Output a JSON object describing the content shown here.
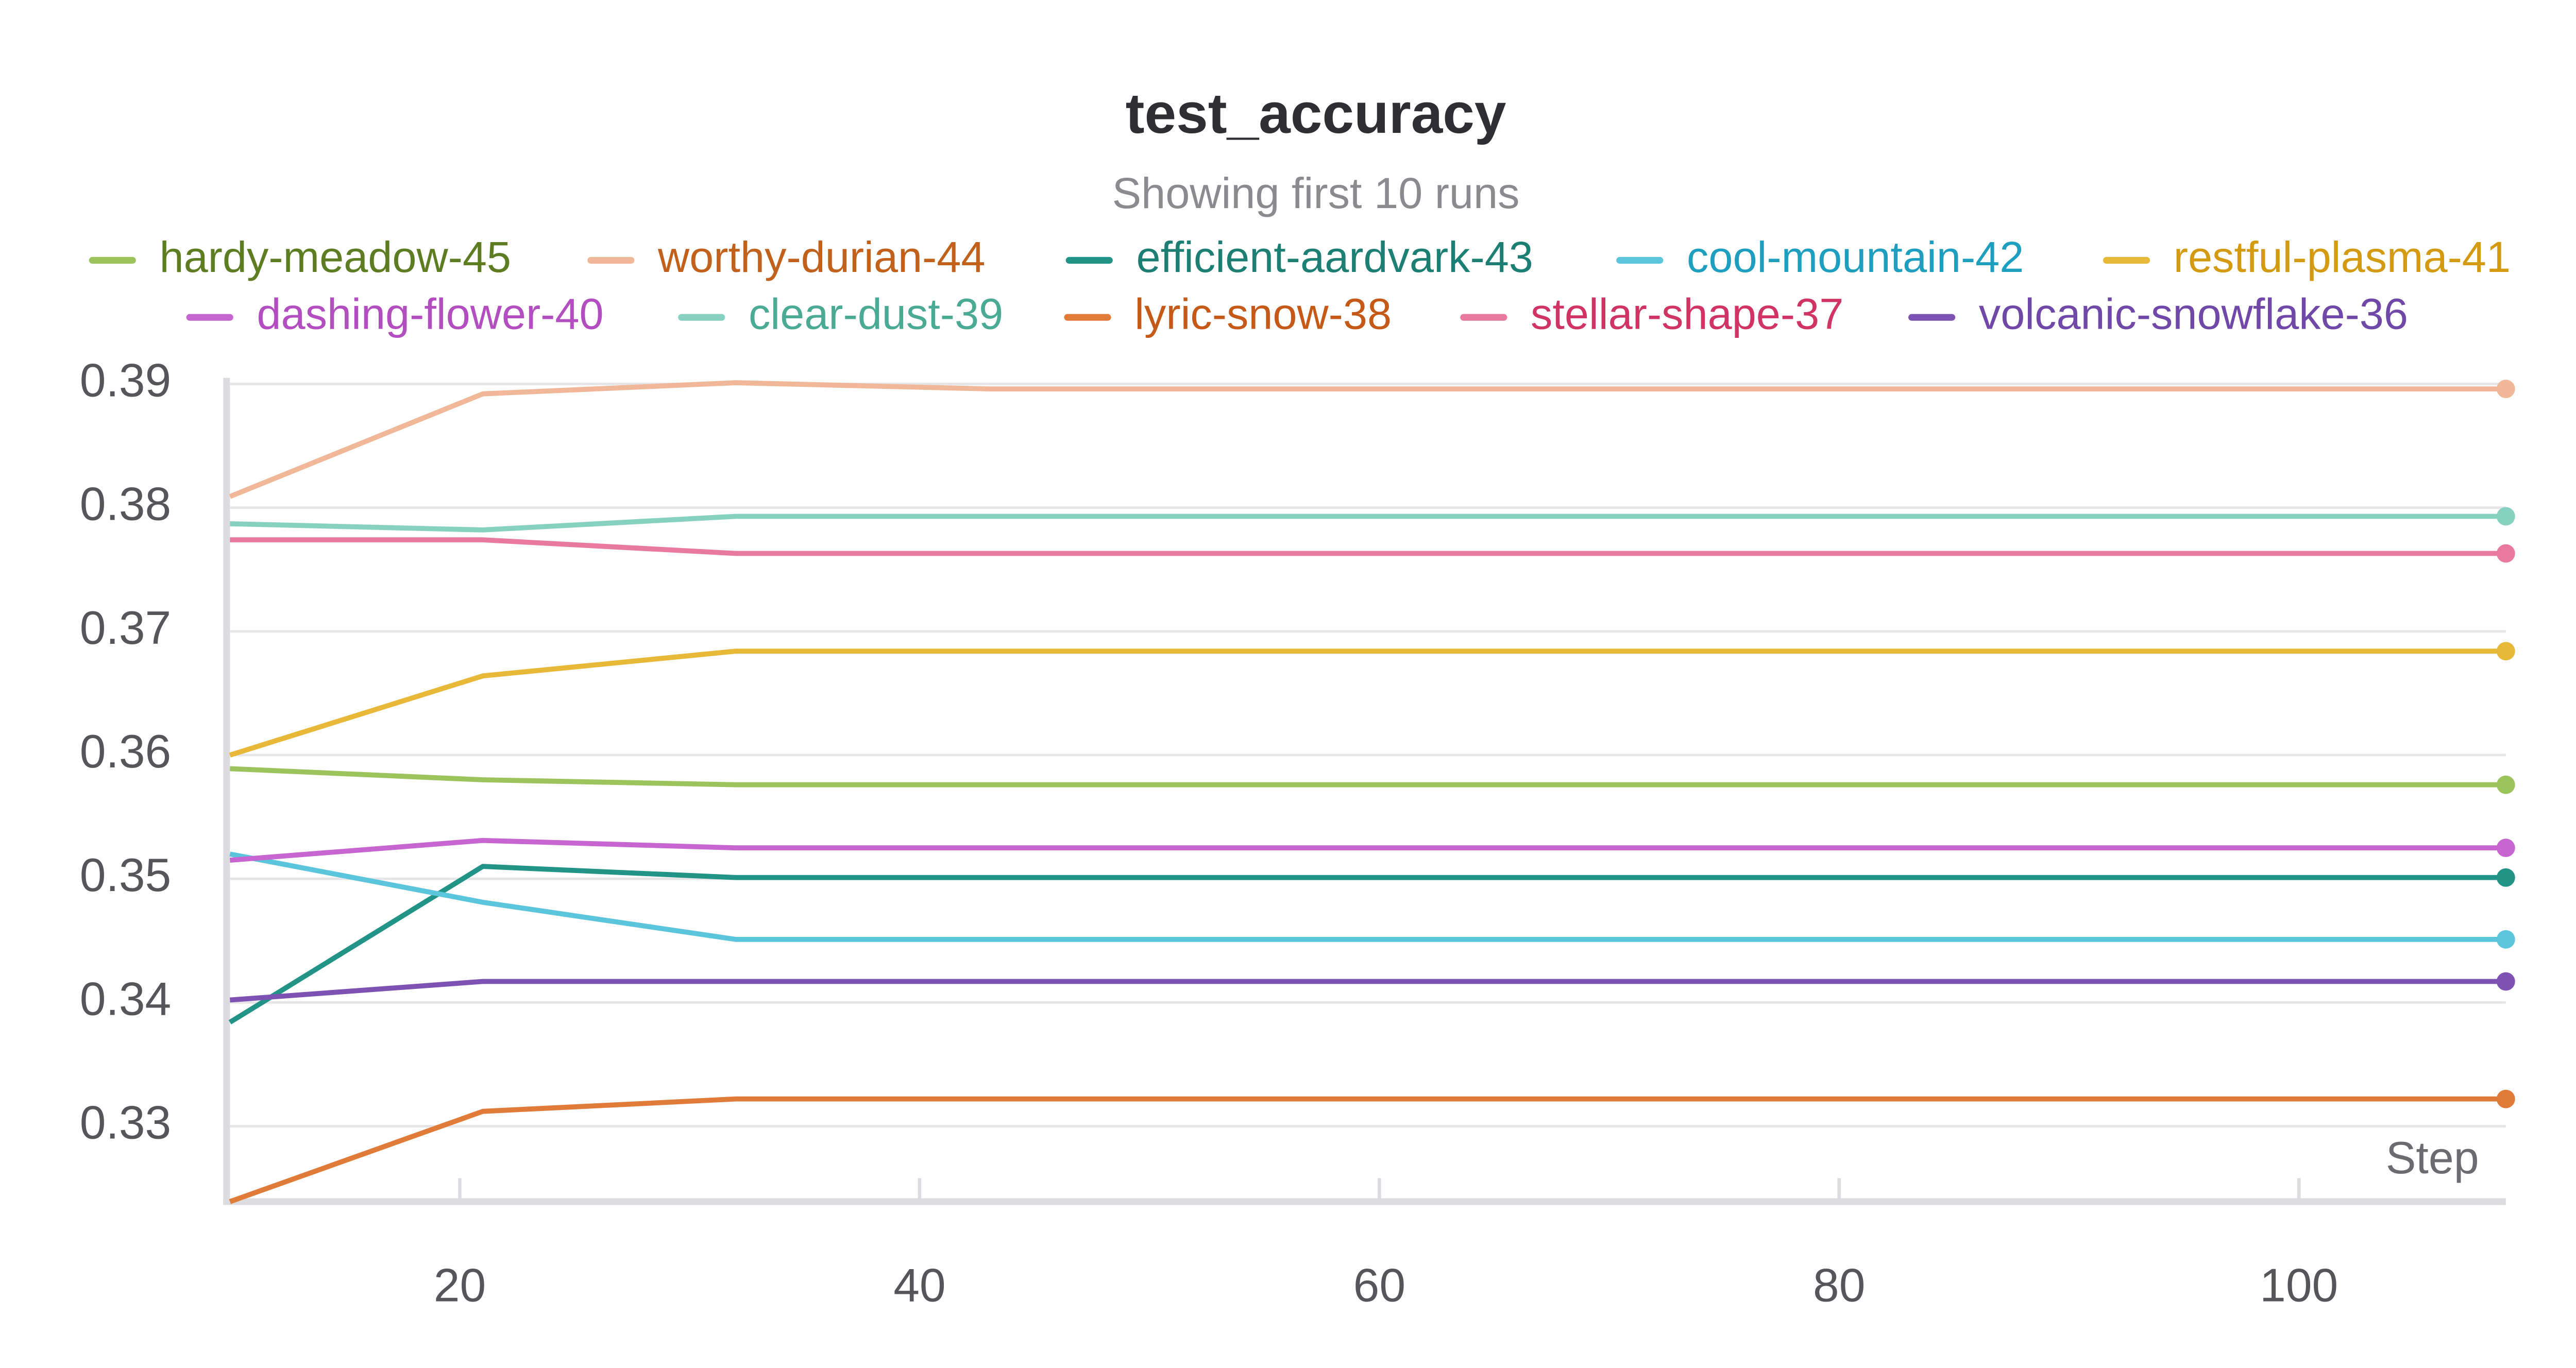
{
  "chart_data": {
    "type": "line",
    "title": "test_accuracy",
    "subtitle": "Showing first 10 runs",
    "x_label": "Step",
    "x": [
      10,
      21,
      32,
      43,
      54,
      65,
      76,
      87,
      98,
      109
    ],
    "xlim": [
      10,
      109
    ],
    "xticks": [
      20,
      40,
      60,
      80,
      100
    ],
    "ylim": [
      0.3239,
      0.3905
    ],
    "yticks": [
      0.33,
      0.34,
      0.35,
      0.36,
      0.37,
      0.38,
      0.39
    ],
    "grid": true,
    "series": [
      {
        "name": "hardy-meadow-45",
        "color": "#9cc45c",
        "text_color": "#5e7d22",
        "values": [
          0.3589,
          0.358,
          0.3576,
          0.3576,
          0.3576,
          0.3576,
          0.3576,
          0.3576,
          0.3576,
          0.3576
        ]
      },
      {
        "name": "worthy-durian-44",
        "color": "#f0b898",
        "text_color": "#c2611b",
        "values": [
          0.3809,
          0.3892,
          0.3901,
          0.3896,
          0.3896,
          0.3896,
          0.3896,
          0.3896,
          0.3896,
          0.3896
        ]
      },
      {
        "name": "efficient-aardvark-43",
        "color": "#229487",
        "text_color": "#1d7f73",
        "values": [
          0.3384,
          0.351,
          0.3501,
          0.3501,
          0.3501,
          0.3501,
          0.3501,
          0.3501,
          0.3501,
          0.3501
        ]
      },
      {
        "name": "cool-mountain-42",
        "color": "#5bc5db",
        "text_color": "#1f9fbf",
        "values": [
          0.352,
          0.3481,
          0.3451,
          0.3451,
          0.3451,
          0.3451,
          0.3451,
          0.3451,
          0.3451,
          0.3451
        ]
      },
      {
        "name": "restful-plasma-41",
        "color": "#e8b838",
        "text_color": "#d39a12",
        "values": [
          0.36,
          0.3664,
          0.3684,
          0.3684,
          0.3684,
          0.3684,
          0.3684,
          0.3684,
          0.3684,
          0.3684
        ]
      },
      {
        "name": "dashing-flower-40",
        "color": "#c765d1",
        "text_color": "#b24ec0",
        "values": [
          0.3515,
          0.3531,
          0.3525,
          0.3525,
          0.3525,
          0.3525,
          0.3525,
          0.3525,
          0.3525,
          0.3525
        ]
      },
      {
        "name": "clear-dust-39",
        "color": "#87d1c0",
        "text_color": "#4aaa93",
        "values": [
          0.3787,
          0.3782,
          0.3793,
          0.3793,
          0.3793,
          0.3793,
          0.3793,
          0.3793,
          0.3793,
          0.3793
        ]
      },
      {
        "name": "lyric-snow-38",
        "color": "#e07b39",
        "text_color": "#c55a18",
        "values": [
          0.3239,
          0.3312,
          0.3322,
          0.3322,
          0.3322,
          0.3322,
          0.3322,
          0.3322,
          0.3322,
          0.3322
        ]
      },
      {
        "name": "stellar-shape-37",
        "color": "#e87aa0",
        "text_color": "#cf3465",
        "values": [
          0.3774,
          0.3774,
          0.3763,
          0.3763,
          0.3763,
          0.3763,
          0.3763,
          0.3763,
          0.3763,
          0.3763
        ]
      },
      {
        "name": "volcanic-snowflake-36",
        "color": "#7e52b3",
        "text_color": "#7048a8",
        "values": [
          0.3402,
          0.3417,
          0.3417,
          0.3417,
          0.3417,
          0.3417,
          0.3417,
          0.3417,
          0.3417,
          0.3417
        ]
      }
    ]
  }
}
